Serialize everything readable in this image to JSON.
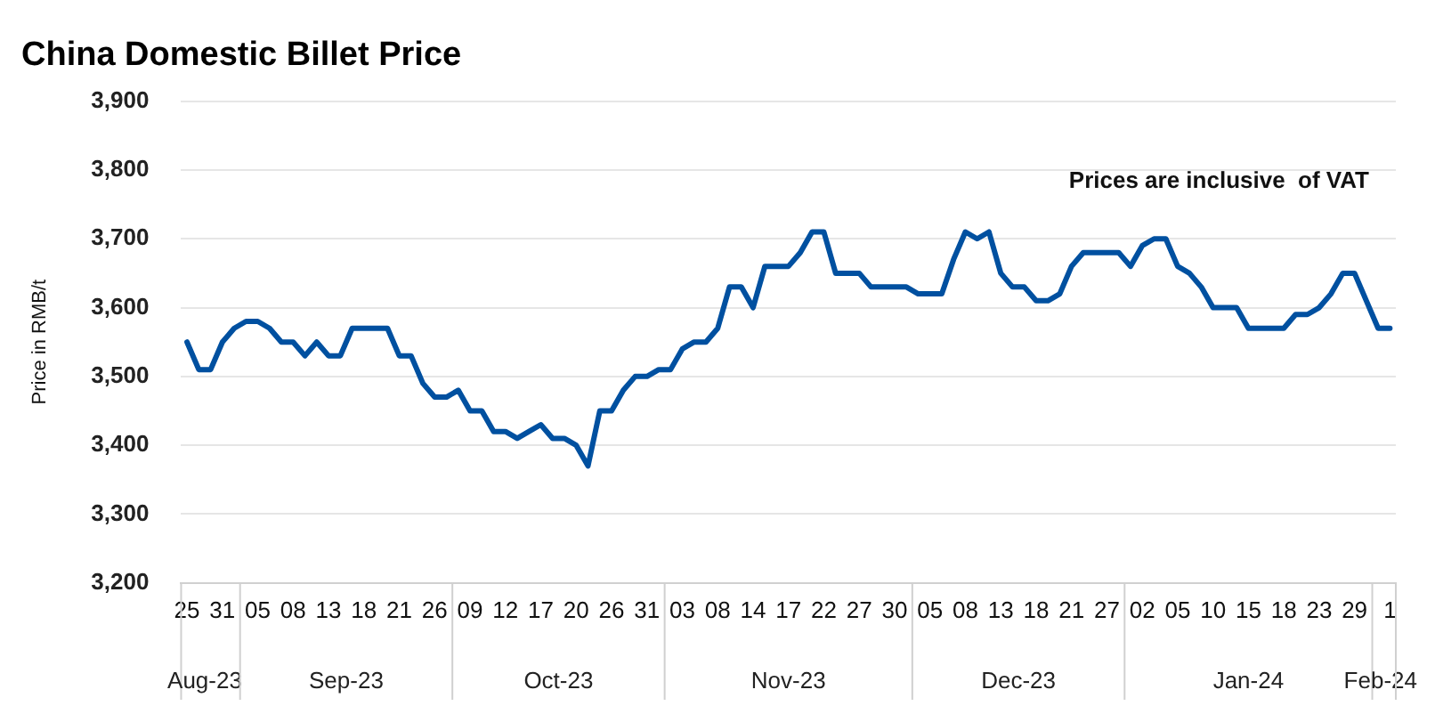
{
  "chart_data": {
    "type": "line",
    "title": "China Domestic Billet Price",
    "ylabel": "Price in RMB/t",
    "categories": [
      "25",
      null,
      null,
      "31",
      null,
      null,
      "05",
      null,
      null,
      "08",
      null,
      null,
      "13",
      null,
      null,
      "18",
      null,
      null,
      "21",
      null,
      null,
      "26",
      null,
      null,
      "09",
      null,
      null,
      "12",
      null,
      null,
      "17",
      null,
      null,
      "20",
      null,
      null,
      "26",
      null,
      null,
      "31",
      null,
      null,
      "03",
      null,
      null,
      "08",
      null,
      null,
      "14",
      null,
      null,
      "17",
      null,
      null,
      "22",
      null,
      null,
      "27",
      null,
      null,
      "30",
      null,
      null,
      "05",
      null,
      null,
      "08",
      null,
      null,
      "13",
      null,
      null,
      "18",
      null,
      null,
      "21",
      null,
      null,
      "27",
      null,
      null,
      "02",
      null,
      null,
      "05",
      null,
      null,
      "10",
      null,
      null,
      "15",
      null,
      null,
      "18",
      null,
      null,
      "23",
      null,
      null,
      "29",
      null,
      null,
      "1"
    ],
    "series": [
      {
        "color": "#0050a0",
        "values": [
          3550,
          3510,
          3510,
          3550,
          3570,
          3580,
          3580,
          3570,
          3550,
          3550,
          3530,
          3550,
          3530,
          3530,
          3570,
          3570,
          3570,
          3570,
          3530,
          3530,
          3490,
          3470,
          3470,
          3480,
          3450,
          3450,
          3420,
          3420,
          3410,
          3420,
          3430,
          3410,
          3410,
          3400,
          3370,
          3450,
          3450,
          3480,
          3500,
          3500,
          3510,
          3510,
          3540,
          3550,
          3550,
          3570,
          3630,
          3630,
          3600,
          3660,
          3660,
          3660,
          3680,
          3710,
          3710,
          3650,
          3650,
          3650,
          3630,
          3630,
          3630,
          3630,
          3620,
          3620,
          3620,
          3670,
          3710,
          3700,
          3710,
          3650,
          3630,
          3630,
          3610,
          3610,
          3620,
          3660,
          3680,
          3680,
          3680,
          3680,
          3660,
          3690,
          3700,
          3700,
          3660,
          3650,
          3630,
          3600,
          3600,
          3600,
          3570,
          3570,
          3570,
          3570,
          3590,
          3590,
          3600,
          3620,
          3650,
          3650,
          3610,
          3570,
          3570
        ]
      }
    ],
    "ylim": [
      3200,
      3900
    ],
    "yticks": [
      {
        "value": 3200,
        "label": "3,200"
      },
      {
        "value": 3300,
        "label": "3,300"
      },
      {
        "value": 3400,
        "label": "3,400"
      },
      {
        "value": 3500,
        "label": "3,500"
      },
      {
        "value": 3600,
        "label": "3,600"
      },
      {
        "value": 3700,
        "label": "3,700"
      },
      {
        "value": 3800,
        "label": "3,800"
      },
      {
        "value": 3900,
        "label": "3,900"
      }
    ],
    "grid": "y",
    "legend": false,
    "marker": "none",
    "line_style": "solid",
    "annotations": [
      "Prices are inclusive  of VAT",
      "Aug-23",
      "Sep-23",
      "Oct-23",
      "Nov-23",
      "Dec-23",
      "Jan-24",
      "Feb-24"
    ]
  }
}
